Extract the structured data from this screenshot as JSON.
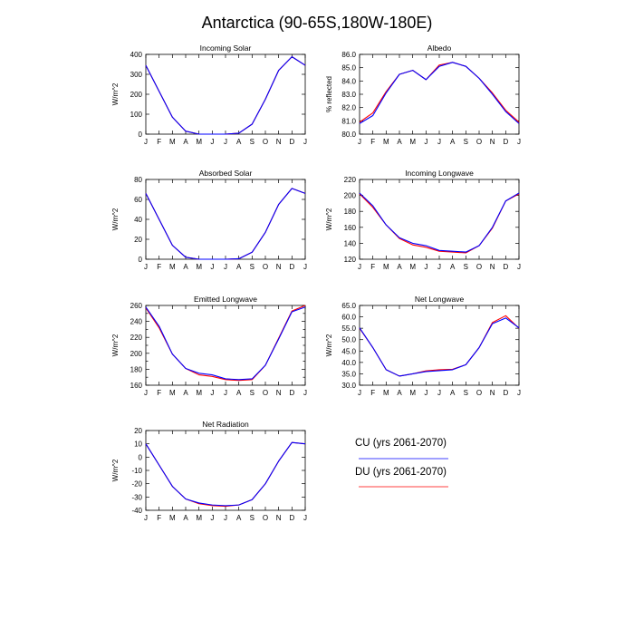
{
  "figure": {
    "title": "Antarctica (90-65S,180W-180E)"
  },
  "legend": [
    {
      "label": "CU (yrs 2061-2070)",
      "color": "#0000ff"
    },
    {
      "label": "DU (yrs 2061-2070)",
      "color": "#ff0000"
    }
  ],
  "chart_data": [
    {
      "type": "line",
      "title": "Incoming Solar",
      "ylabel": "W/m^2",
      "xlabel": "",
      "categories": [
        "J",
        "F",
        "M",
        "A",
        "M",
        "J",
        "J",
        "A",
        "S",
        "O",
        "N",
        "D",
        "J"
      ],
      "ylim": [
        0,
        400
      ],
      "yticks": [
        0,
        100,
        200,
        300,
        400
      ],
      "ytick_labels": [
        "0",
        "100",
        "200",
        "300",
        "400"
      ],
      "series": [
        {
          "name": "CU (yrs 2061-2070)",
          "color": "#0000ff",
          "values": [
            345,
            215,
            85,
            15,
            0,
            0,
            0,
            5,
            50,
            175,
            320,
            388,
            345
          ]
        },
        {
          "name": "DU (yrs 2061-2070)",
          "color": "#ff0000",
          "values": [
            345,
            215,
            85,
            15,
            0,
            0,
            0,
            5,
            50,
            175,
            320,
            388,
            345
          ]
        }
      ]
    },
    {
      "type": "line",
      "title": "Albedo",
      "ylabel": "% reflected",
      "xlabel": "",
      "categories": [
        "J",
        "F",
        "M",
        "A",
        "M",
        "J",
        "J",
        "A",
        "S",
        "O",
        "N",
        "D",
        "J"
      ],
      "ylim": [
        80,
        86
      ],
      "yticks": [
        80,
        81,
        82,
        83,
        84,
        85,
        86
      ],
      "ytick_labels": [
        "80.0",
        "81.0",
        "82.0",
        "83.0",
        "84.0",
        "85.0",
        "86.0"
      ],
      "series": [
        {
          "name": "CU (yrs 2061-2070)",
          "color": "#0000ff",
          "values": [
            80.8,
            81.4,
            83.1,
            84.5,
            84.8,
            84.1,
            85.1,
            85.4,
            85.1,
            84.2,
            83.0,
            81.7,
            80.8
          ]
        },
        {
          "name": "DU (yrs 2061-2070)",
          "color": "#ff0000",
          "values": [
            80.9,
            81.6,
            83.2,
            84.5,
            84.8,
            84.1,
            85.2,
            85.4,
            85.1,
            84.2,
            83.1,
            81.8,
            80.9
          ]
        }
      ]
    },
    {
      "type": "line",
      "title": "Absorbed Solar",
      "ylabel": "W/m^2",
      "xlabel": "",
      "categories": [
        "J",
        "F",
        "M",
        "A",
        "M",
        "J",
        "J",
        "A",
        "S",
        "O",
        "N",
        "D",
        "J"
      ],
      "ylim": [
        0,
        80
      ],
      "yticks": [
        0,
        20,
        40,
        60,
        80
      ],
      "ytick_labels": [
        "0",
        "20",
        "40",
        "60",
        "80"
      ],
      "series": [
        {
          "name": "CU (yrs 2061-2070)",
          "color": "#0000ff",
          "values": [
            66,
            40,
            14,
            2,
            0,
            0,
            0,
            0.5,
            7,
            27,
            55,
            71,
            66
          ]
        },
        {
          "name": "DU (yrs 2061-2070)",
          "color": "#ff0000",
          "values": [
            66,
            40,
            14,
            2,
            0,
            0,
            0,
            0.5,
            7,
            27,
            55,
            71,
            66
          ]
        }
      ]
    },
    {
      "type": "line",
      "title": "Incoming Longwave",
      "ylabel": "W/m^2",
      "xlabel": "",
      "categories": [
        "J",
        "F",
        "M",
        "A",
        "M",
        "J",
        "J",
        "A",
        "S",
        "O",
        "N",
        "D",
        "J"
      ],
      "ylim": [
        120,
        220
      ],
      "yticks": [
        120,
        140,
        160,
        180,
        200,
        220
      ],
      "ytick_labels": [
        "120",
        "140",
        "160",
        "180",
        "200",
        "220"
      ],
      "series": [
        {
          "name": "CU (yrs 2061-2070)",
          "color": "#0000ff",
          "values": [
            203,
            187,
            163,
            147,
            140,
            137,
            131,
            130,
            129,
            137,
            160,
            193,
            203
          ]
        },
        {
          "name": "DU (yrs 2061-2070)",
          "color": "#ff0000",
          "values": [
            202,
            185,
            163,
            146,
            138,
            135,
            130,
            129,
            128,
            137,
            159,
            193,
            202
          ]
        }
      ]
    },
    {
      "type": "line",
      "title": "Emitted Longwave",
      "ylabel": "W/m^2",
      "xlabel": "",
      "categories": [
        "J",
        "F",
        "M",
        "A",
        "M",
        "J",
        "J",
        "A",
        "S",
        "O",
        "N",
        "D",
        "J"
      ],
      "ylim": [
        160,
        260
      ],
      "yticks": [
        160,
        170,
        180,
        190,
        200,
        210,
        220,
        230,
        240,
        250,
        260
      ],
      "ytick_labels": [
        "160",
        "",
        "180",
        "",
        "200",
        "",
        "220",
        "",
        "240",
        "",
        "260"
      ],
      "series": [
        {
          "name": "CU (yrs 2061-2070)",
          "color": "#0000ff",
          "values": [
            258,
            234,
            199,
            181,
            175,
            173,
            168,
            167,
            168,
            185,
            218,
            252,
            258
          ]
        },
        {
          "name": "DU (yrs 2061-2070)",
          "color": "#ff0000",
          "values": [
            257,
            232,
            199,
            181,
            173,
            171,
            167,
            166,
            167,
            185,
            219,
            253,
            260
          ]
        }
      ]
    },
    {
      "type": "line",
      "title": "Net Longwave",
      "ylabel": "W/m^2",
      "xlabel": "",
      "categories": [
        "J",
        "F",
        "M",
        "A",
        "M",
        "J",
        "J",
        "A",
        "S",
        "O",
        "N",
        "D",
        "J"
      ],
      "ylim": [
        30,
        65
      ],
      "yticks": [
        30,
        35,
        40,
        45,
        50,
        55,
        60,
        65
      ],
      "ytick_labels": [
        "30.0",
        "35.0",
        "40.0",
        "45.0",
        "50.0",
        "55.0",
        "60.0",
        "65.0"
      ],
      "series": [
        {
          "name": "CU (yrs 2061-2070)",
          "color": "#0000ff",
          "values": [
            55.2,
            46.5,
            36.8,
            34.0,
            35.0,
            36.0,
            36.4,
            36.8,
            39.0,
            46.5,
            57.0,
            59.5,
            55.2
          ]
        },
        {
          "name": "DU (yrs 2061-2070)",
          "color": "#ff0000",
          "values": [
            55.0,
            46.5,
            36.8,
            34.0,
            35.0,
            36.3,
            36.8,
            37.0,
            39.0,
            46.5,
            57.5,
            60.5,
            55.0
          ]
        }
      ]
    },
    {
      "type": "line",
      "title": "Net Radiation",
      "ylabel": "W/m^2",
      "xlabel": "",
      "categories": [
        "J",
        "F",
        "M",
        "A",
        "M",
        "J",
        "J",
        "A",
        "S",
        "O",
        "N",
        "D",
        "J"
      ],
      "ylim": [
        -40,
        20
      ],
      "yticks": [
        -40,
        -30,
        -20,
        -10,
        0,
        10,
        20
      ],
      "ytick_labels": [
        "-40",
        "-30",
        "-20",
        "-10",
        "0",
        "10",
        "20"
      ],
      "series": [
        {
          "name": "CU (yrs 2061-2070)",
          "color": "#0000ff",
          "values": [
            10,
            -6,
            -22,
            -31.5,
            -34.5,
            -36,
            -36.5,
            -36,
            -32,
            -20,
            -3,
            11,
            10
          ]
        },
        {
          "name": "DU (yrs 2061-2070)",
          "color": "#ff0000",
          "values": [
            10,
            -6,
            -22,
            -31.5,
            -35,
            -36.5,
            -37,
            -36,
            -32,
            -20,
            -3,
            11,
            10
          ]
        }
      ]
    }
  ]
}
